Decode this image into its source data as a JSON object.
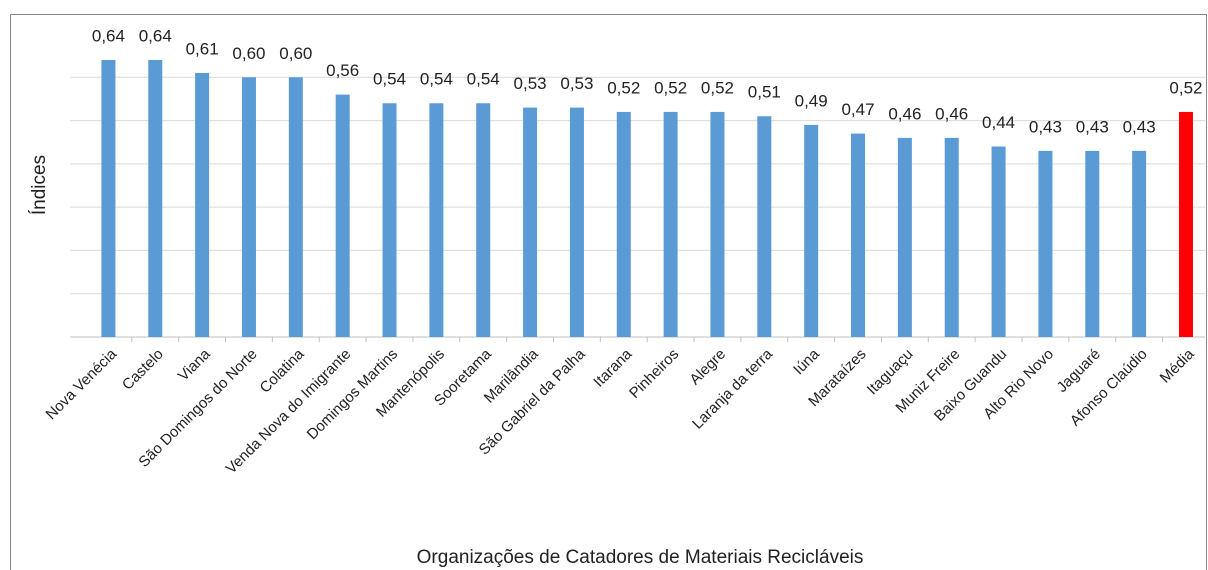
{
  "chart_data": {
    "type": "bar",
    "x_label": "Organizações de Catadores de Materiais Recicláveis",
    "y_label": "Índices",
    "categories": [
      "Nova Venécia",
      "Castelo",
      "Viana",
      "São Domingos do Norte",
      "Colatina",
      "Venda Nova do Imigrante",
      "Domingos Martins",
      "Mantenópolis",
      "Sooretama",
      "Marilândia",
      "São Gabriel da Palha",
      "Itarana",
      "Pinheiros",
      "Alegre",
      "Laranja da terra",
      "Iúna",
      "Marataízes",
      "Itaguaçu",
      "Muniz Freire",
      "Baixo Guandu",
      "Alto Rio Novo",
      "Jaguaré",
      "Afonso Claúdio",
      "Média"
    ],
    "values": [
      0.64,
      0.64,
      0.61,
      0.6,
      0.6,
      0.56,
      0.54,
      0.54,
      0.54,
      0.53,
      0.53,
      0.52,
      0.52,
      0.52,
      0.51,
      0.49,
      0.47,
      0.46,
      0.46,
      0.44,
      0.43,
      0.43,
      0.43,
      0.52
    ],
    "value_labels": [
      "0,64",
      "0,64",
      "0,61",
      "0,60",
      "0,60",
      "0,56",
      "0,54",
      "0,54",
      "0,54",
      "0,53",
      "0,53",
      "0,52",
      "0,52",
      "0,52",
      "0,51",
      "0,49",
      "0,47",
      "0,46",
      "0,46",
      "0,44",
      "0,43",
      "0,43",
      "0,43",
      "0,52"
    ],
    "colors": [
      "#5b9bd5",
      "#5b9bd5",
      "#5b9bd5",
      "#5b9bd5",
      "#5b9bd5",
      "#5b9bd5",
      "#5b9bd5",
      "#5b9bd5",
      "#5b9bd5",
      "#5b9bd5",
      "#5b9bd5",
      "#5b9bd5",
      "#5b9bd5",
      "#5b9bd5",
      "#5b9bd5",
      "#5b9bd5",
      "#5b9bd5",
      "#5b9bd5",
      "#5b9bd5",
      "#5b9bd5",
      "#5b9bd5",
      "#5b9bd5",
      "#5b9bd5",
      "#ff0000"
    ],
    "ylim": [
      0,
      0.7
    ],
    "yticks": [
      0,
      0.1,
      0.2,
      0.3,
      0.4,
      0.5,
      0.6
    ],
    "grid": true
  }
}
